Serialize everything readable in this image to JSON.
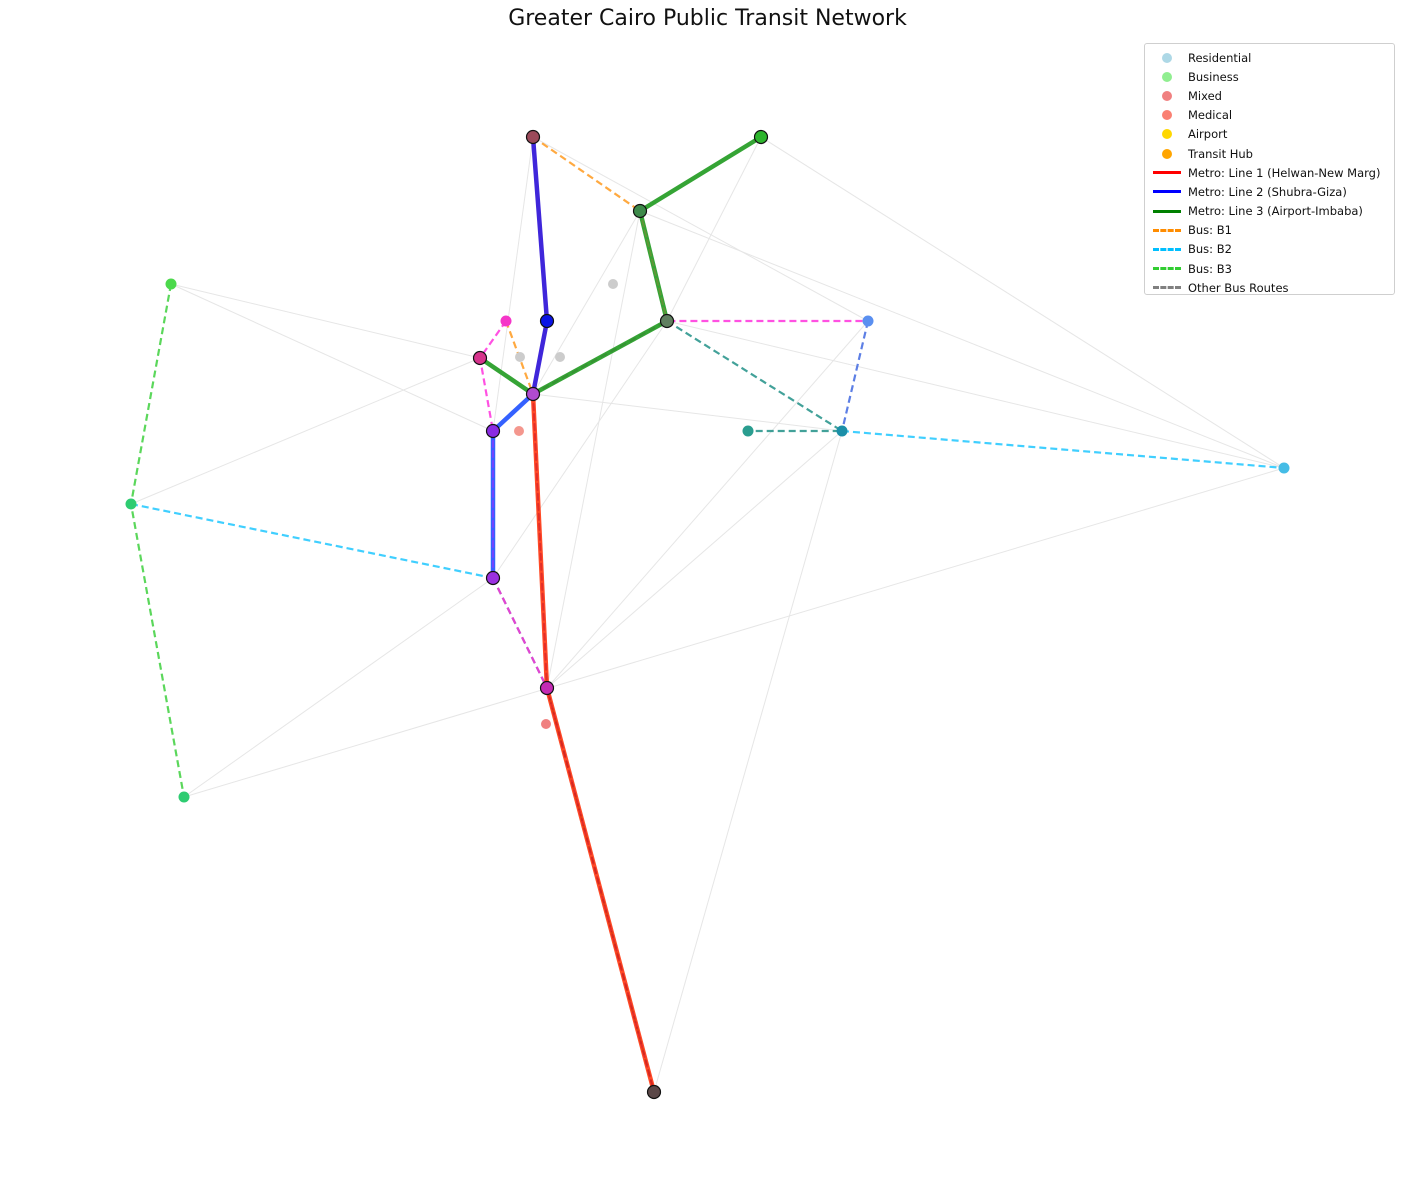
{
  "title": "Greater Cairo Public Transit Network",
  "legend": [
    {
      "label": "Residential",
      "kind": "dot",
      "color": "#add8e6"
    },
    {
      "label": "Business",
      "kind": "dot",
      "color": "#90ee90"
    },
    {
      "label": "Mixed",
      "kind": "dot",
      "color": "#f08080"
    },
    {
      "label": "Medical",
      "kind": "dot",
      "color": "#fa8072"
    },
    {
      "label": "Airport",
      "kind": "dot",
      "color": "#ffd700"
    },
    {
      "label": "Transit Hub",
      "kind": "dot",
      "color": "#ffa500"
    },
    {
      "label": "Metro: Line 1 (Helwan-New Marg)",
      "kind": "solid",
      "color": "#ff0000"
    },
    {
      "label": "Metro: Line 2 (Shubra-Giza)",
      "kind": "solid",
      "color": "#0000ff"
    },
    {
      "label": "Metro: Line 3 (Airport-Imbaba)",
      "kind": "solid",
      "color": "#008000"
    },
    {
      "label": "Bus: B1",
      "kind": "dashed",
      "color": "#ff8c00"
    },
    {
      "label": "Bus: B2",
      "kind": "dashed",
      "color": "#00bfff"
    },
    {
      "label": "Bus: B3",
      "kind": "dashed",
      "color": "#32cd32"
    },
    {
      "label": "Other Bus Routes",
      "kind": "dashed",
      "color": "#808080"
    }
  ]
}
